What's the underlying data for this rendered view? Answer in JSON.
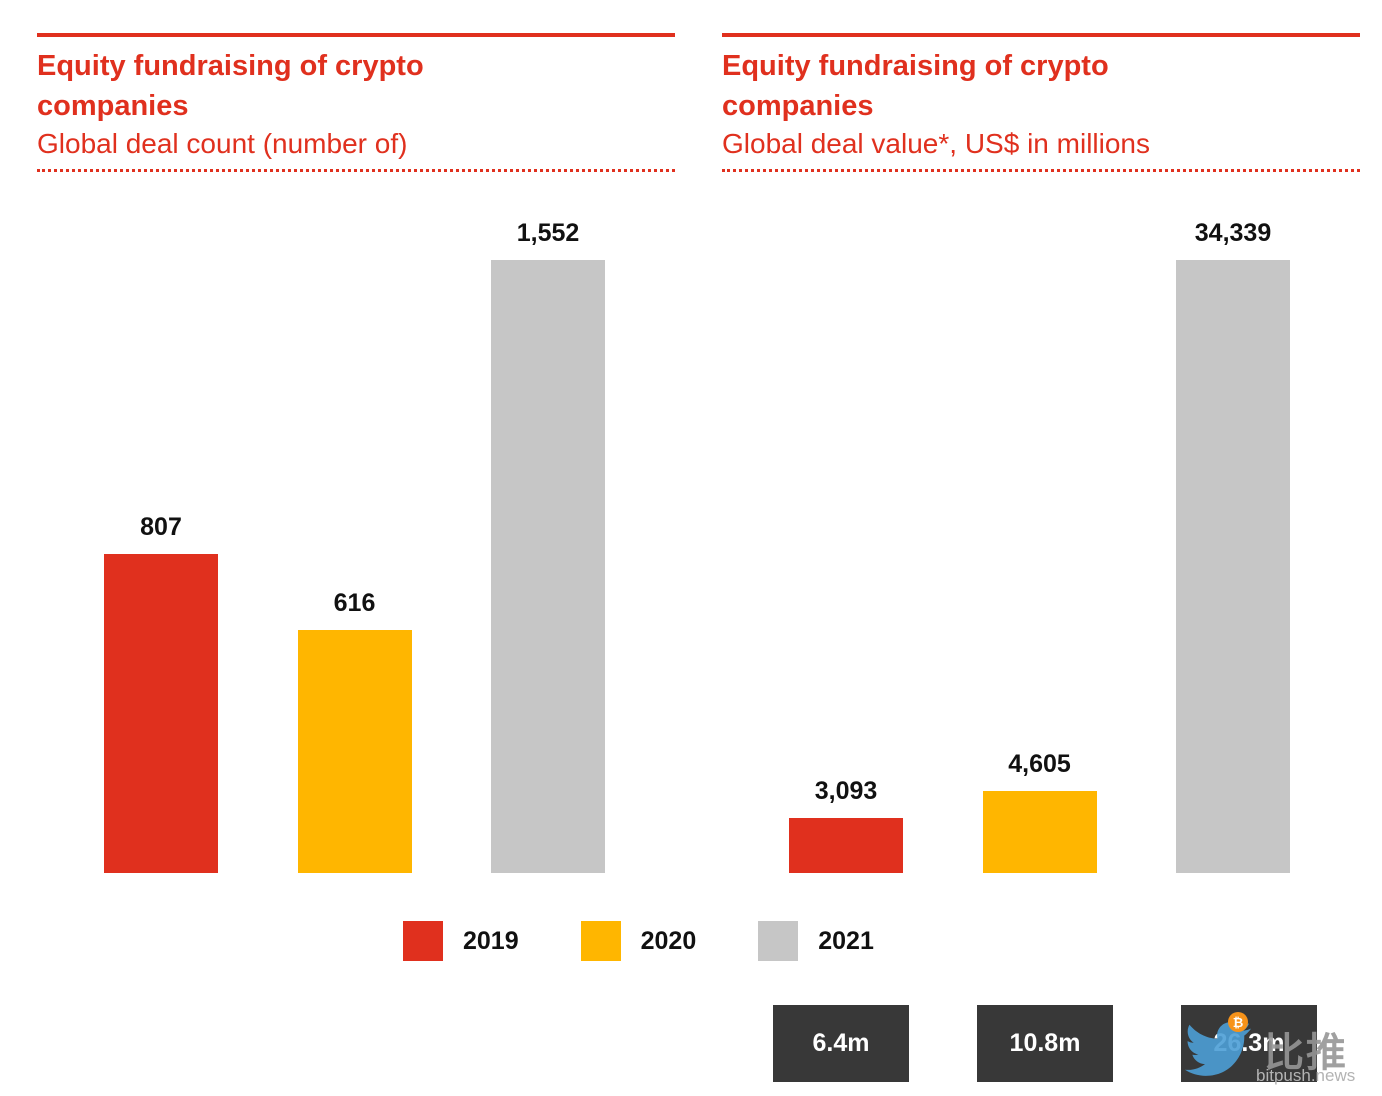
{
  "chart_data": [
    {
      "type": "bar",
      "title": "Equity fundraising of crypto companies",
      "subtitle": "Global deal count (number of)",
      "categories": [
        "2019",
        "2020",
        "2021"
      ],
      "values": [
        807,
        616,
        1552
      ],
      "value_labels": [
        "807",
        "616",
        "1,552"
      ],
      "bar_colors": [
        "#e0301e",
        "#ffb600",
        "#c6c6c6"
      ],
      "ylim": [
        0,
        1600
      ],
      "grid": false,
      "axes_shown": false,
      "legend_position": "bottom"
    },
    {
      "type": "bar",
      "title": "Equity fundraising of crypto companies",
      "subtitle": "Global deal value*, US$ in millions",
      "categories": [
        "2019",
        "2020",
        "2021"
      ],
      "values": [
        3093,
        4605,
        34339
      ],
      "value_labels": [
        "3,093",
        "4,605",
        "34,339"
      ],
      "bar_colors": [
        "#e0301e",
        "#ffb600",
        "#c6c6c6"
      ],
      "ylim": [
        0,
        35000
      ],
      "grid": false,
      "axes_shown": false,
      "legend_position": "bottom"
    }
  ],
  "legend": {
    "items": [
      {
        "label": "2019",
        "color": "#e0301e"
      },
      {
        "label": "2020",
        "color": "#ffb600"
      },
      {
        "label": "2021",
        "color": "#c6c6c6"
      }
    ]
  },
  "footer_stats": {
    "values": [
      "6.4m",
      "10.8m",
      "26.3m"
    ],
    "background": "#383838"
  },
  "watermark": {
    "logo": "twitter-bird-icon",
    "badge": "₿",
    "brand": "比推",
    "site": "bitpush.news"
  },
  "colors": {
    "accent_red": "#e0301e",
    "amber": "#ffb600",
    "gray_bar": "#c6c6c6",
    "stat_box": "#383838"
  }
}
